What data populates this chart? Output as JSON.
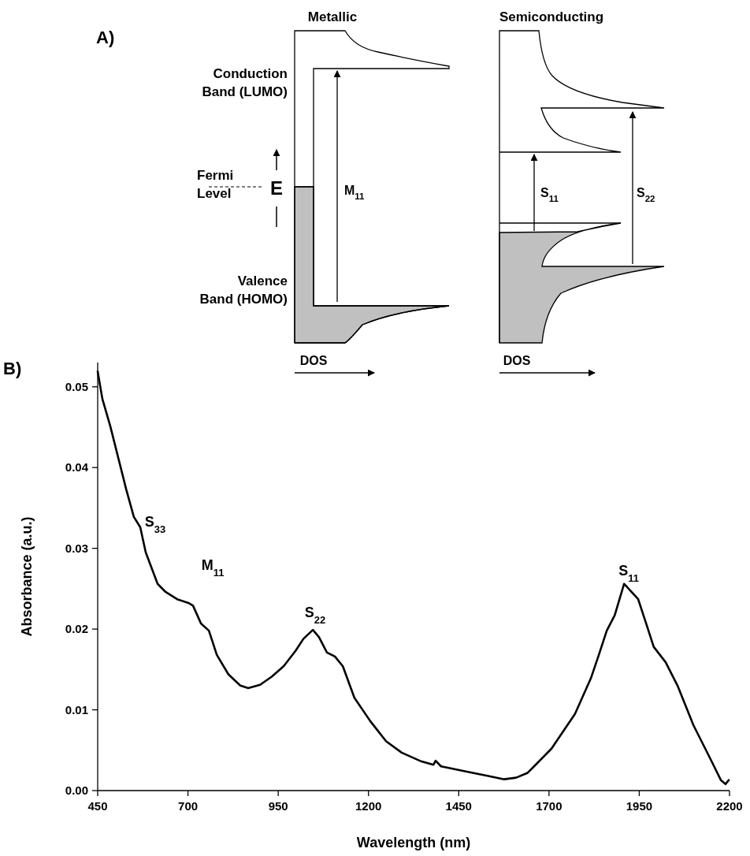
{
  "chart_data": [
    {
      "type": "other",
      "annotations": [
        "A)",
        "Metallic",
        "Semiconducting",
        "Conduction Band (LUMO)",
        "Fermi Level",
        "E",
        "M$_{11}$",
        "Valence Band (HOMO)",
        "S$_{11}$",
        "S$_{22}$",
        "DOS",
        "DOS"
      ]
    },
    {
      "type": "line",
      "xlabel": "Wavelength (nm)",
      "ylabel": "Absorbance (a.u.)",
      "xlim": [
        450,
        2200
      ],
      "xticks": [
        450,
        700,
        950,
        1200,
        1450,
        1700,
        1950,
        2200
      ],
      "ylim": [
        0,
        0.053
      ],
      "yticks": [
        {
          "value": 0,
          "label": "0.00"
        },
        {
          "value": 0.01,
          "label": "0.01"
        },
        {
          "value": 0.02,
          "label": "0.02"
        },
        {
          "value": 0.03,
          "label": "0.03"
        },
        {
          "value": 0.04,
          "label": "0.04"
        },
        {
          "value": 0.05,
          "label": "0.05"
        }
      ],
      "annotations": [
        "B)",
        "S$_{33}$",
        "M$_{11}$",
        "S$_{22}$",
        "S$_{11}$"
      ],
      "series": [
        {
          "color": "#000000",
          "x": [
            450,
            463,
            485,
            507,
            529,
            550,
            568,
            583,
            616,
            638,
            670,
            703,
            714,
            736,
            758,
            780,
            812,
            845,
            867,
            900,
            932,
            965,
            998,
            1020,
            1046,
            1063,
            1085,
            1107,
            1129,
            1161,
            1205,
            1249,
            1292,
            1347,
            1380,
            1386,
            1401,
            1467,
            1532,
            1576,
            1609,
            1641,
            1663,
            1707,
            1772,
            1816,
            1838,
            1860,
            1882,
            1908,
            1947,
            1969,
            1990,
            2023,
            2056,
            2100,
            2144,
            2176,
            2189,
            2198
          ],
          "values": [
            0.0519,
            0.0485,
            0.0451,
            0.0412,
            0.0373,
            0.0339,
            0.0326,
            0.0295,
            0.0256,
            0.0246,
            0.0237,
            0.0232,
            0.0229,
            0.0207,
            0.0198,
            0.0168,
            0.0144,
            0.013,
            0.0127,
            0.0131,
            0.0141,
            0.0154,
            0.0173,
            0.0188,
            0.0199,
            0.019,
            0.0171,
            0.0166,
            0.0154,
            0.0115,
            0.0086,
            0.0061,
            0.0047,
            0.0036,
            0.0032,
            0.0037,
            0.003,
            0.0024,
            0.0018,
            0.0014,
            0.0016,
            0.0022,
            0.0032,
            0.0052,
            0.0095,
            0.0139,
            0.0168,
            0.0198,
            0.0217,
            0.0256,
            0.0237,
            0.0207,
            0.0178,
            0.0159,
            0.013,
            0.0081,
            0.0042,
            0.0013,
            0.0008,
            0.0013
          ]
        }
      ]
    }
  ]
}
